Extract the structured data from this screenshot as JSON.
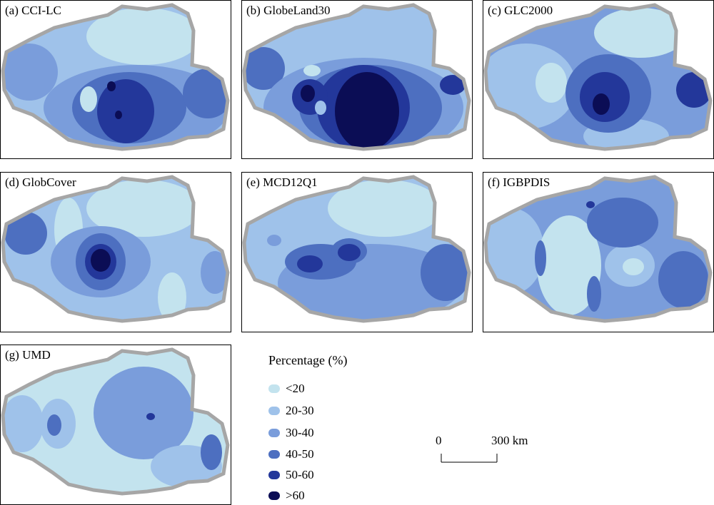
{
  "panels": [
    {
      "label": "(a)  CCI-LC"
    },
    {
      "label": "(b) GlobeLand30"
    },
    {
      "label": "(c) GLC2000"
    },
    {
      "label": "(d) GlobCover"
    },
    {
      "label": "(e) MCD12Q1"
    },
    {
      "label": "(f) IGBPDIS"
    },
    {
      "label": "(g) UMD"
    }
  ],
  "legend": {
    "title": "Percentage (%)",
    "items": [
      {
        "label": "<20",
        "color": "#c3e3ee"
      },
      {
        "label": "20-30",
        "color": "#9fc2ea"
      },
      {
        "label": "30-40",
        "color": "#7a9ddb"
      },
      {
        "label": "40-50",
        "color": "#4d6fc0"
      },
      {
        "label": "50-60",
        "color": "#23379a"
      },
      {
        "label": ">60",
        "color": "#0b0d55"
      }
    ]
  },
  "scale": {
    "start": "0",
    "end": "300 km"
  },
  "colors": {
    "border": "#a6a6a6",
    "frame": "#000000"
  }
}
